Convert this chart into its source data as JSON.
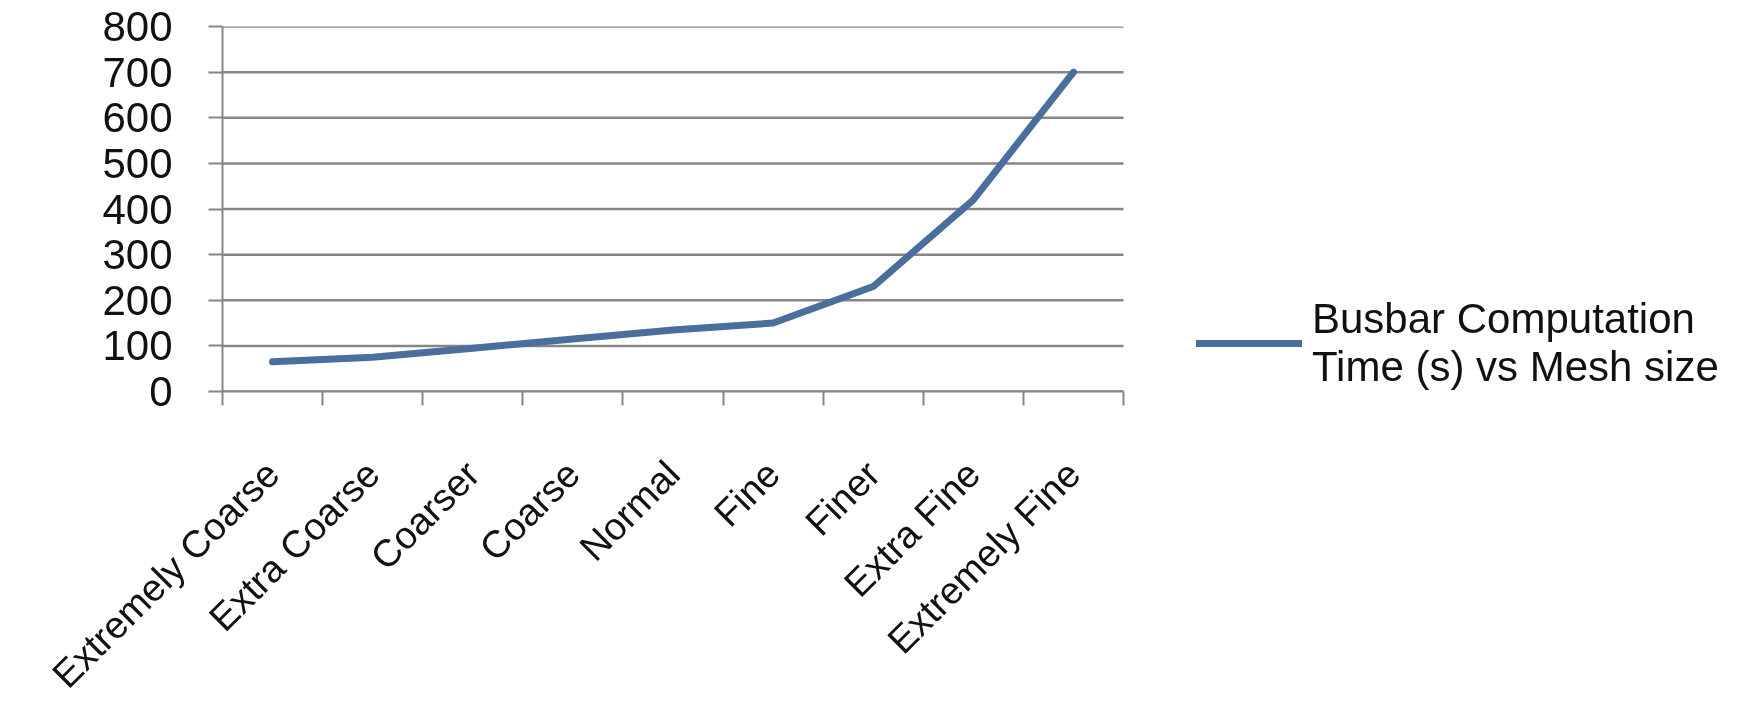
{
  "chart_data": {
    "type": "line",
    "categories": [
      "Extremely Coarse",
      "Extra Coarse",
      "Coarser",
      "Coarse",
      "Normal",
      "Fine",
      "Finer",
      "Extra Fine",
      "Extremely Fine"
    ],
    "series": [
      {
        "name": "Busbar Computation Time (s) vs Mesh size",
        "color": "#4a6f9c",
        "values": [
          65,
          75,
          95,
          115,
          135,
          150,
          230,
          420,
          700
        ]
      }
    ],
    "ylim": [
      0,
      800
    ],
    "yticks": [
      0,
      100,
      200,
      300,
      400,
      500,
      600,
      700,
      800
    ],
    "grid": "y",
    "legend": "right"
  }
}
